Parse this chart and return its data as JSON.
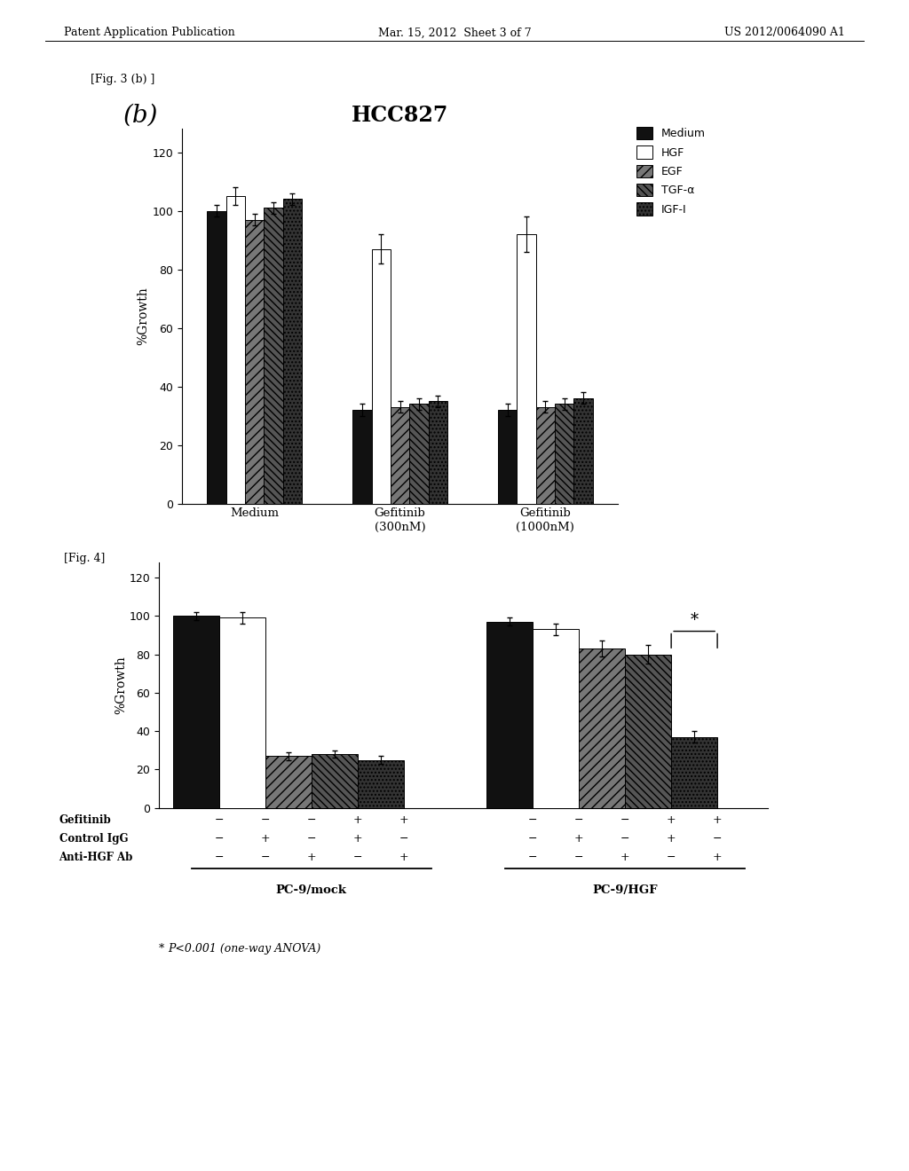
{
  "fig3b": {
    "title": "HCC827",
    "ylabel": "%Growth",
    "yticks": [
      0,
      20,
      40,
      60,
      80,
      100,
      120
    ],
    "ylim": [
      0,
      128
    ],
    "groups": [
      "Medium",
      "Gefitinib\n(300nM)",
      "Gefitinib\n(1000nM)"
    ],
    "series": [
      "Medium",
      "HGF",
      "EGF",
      "TGF-α",
      "IGF-I"
    ],
    "colors": [
      "#111111",
      "#ffffff",
      "#777777",
      "#555555",
      "#333333"
    ],
    "hatches": [
      "",
      "",
      "///",
      "\\\\\\\\",
      "...."
    ],
    "values": [
      [
        100,
        105,
        97,
        101,
        104
      ],
      [
        32,
        87,
        33,
        34,
        35
      ],
      [
        32,
        92,
        33,
        34,
        36
      ]
    ],
    "errors": [
      [
        2,
        3,
        2,
        2,
        2
      ],
      [
        2,
        5,
        2,
        2,
        2
      ],
      [
        2,
        6,
        2,
        2,
        2
      ]
    ],
    "legend_labels": [
      "Medium",
      "HGF",
      "EGF",
      "TGF-α",
      "IGF-I"
    ],
    "fig_label": "[Fig. 3 (b) ]",
    "panel_label": "(b)"
  },
  "fig4": {
    "ylabel": "%Growth",
    "yticks": [
      0,
      20,
      40,
      60,
      80,
      100,
      120
    ],
    "ylim": [
      0,
      128
    ],
    "fig_label": "[Fig. 4]",
    "colors": [
      "#111111",
      "#ffffff",
      "#777777",
      "#555555",
      "#333333"
    ],
    "hatches": [
      "",
      "",
      "///",
      "\\\\\\\\",
      "...."
    ],
    "values_mock": [
      100,
      99,
      27,
      28,
      25
    ],
    "values_hgf": [
      97,
      93,
      83,
      80,
      37
    ],
    "errors_mock": [
      2,
      3,
      2,
      2,
      2
    ],
    "errors_hgf": [
      2,
      3,
      4,
      5,
      3
    ],
    "row_labels": [
      "Gefitinib",
      "Control IgG",
      "Anti-HGF Ab"
    ],
    "symbols_mock": [
      [
        "−",
        "−",
        "−",
        "+",
        "+"
      ],
      [
        "−",
        "+",
        "−",
        "+",
        "−"
      ],
      [
        "−",
        "−",
        "+",
        "−",
        "+"
      ]
    ],
    "symbols_hgf": [
      [
        "−",
        "−",
        "−",
        "+",
        "+"
      ],
      [
        "−",
        "+",
        "−",
        "+",
        "−"
      ],
      [
        "−",
        "−",
        "+",
        "−",
        "+"
      ]
    ],
    "group_names": [
      "PC-9/mock",
      "PC-9/HGF"
    ],
    "annotation": "* P<0.001 (one-way ANOVA)"
  },
  "page_header": {
    "left": "Patent Application Publication",
    "center": "Mar. 15, 2012  Sheet 3 of 7",
    "right": "US 2012/0064090 A1"
  },
  "background_color": "#ffffff"
}
